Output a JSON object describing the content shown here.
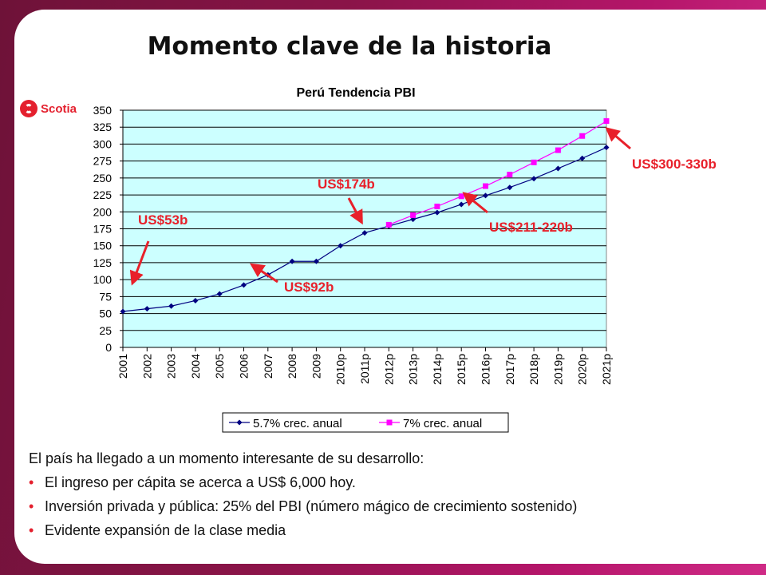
{
  "slide": {
    "title": "Momento clave de la historia",
    "logo_text": "Scotia",
    "intro": "El país ha llegado a un momento interesante de su desarrollo:",
    "bullets": [
      "El ingreso per cápita se acerca a US$ 6,000 hoy.",
      "Inversión privada y pública: 25% del PBI (número mágico de crecimiento sostenido)",
      "Evidente expansión de la clase media"
    ]
  },
  "chart_data": {
    "type": "line",
    "title": "Perú Tendencia PBI",
    "x": [
      "2001",
      "2002",
      "2003",
      "2004",
      "2005",
      "2006",
      "2007",
      "2008",
      "2009",
      "2010p",
      "2011p",
      "2012p",
      "2013p",
      "2014p",
      "2015p",
      "2016p",
      "2017p",
      "2018p",
      "2019p",
      "2020p",
      "2021p"
    ],
    "ylim": [
      0,
      350
    ],
    "yticks": [
      0,
      25,
      50,
      75,
      100,
      125,
      150,
      175,
      200,
      225,
      250,
      275,
      300,
      325,
      350
    ],
    "grid": true,
    "plot_background": "#ccffff",
    "legend_position": "bottom",
    "series": [
      {
        "name": "5.7% crec. anual",
        "color": "#000080",
        "marker": "diamond",
        "values": [
          53,
          57,
          61,
          69,
          79,
          92,
          107,
          127,
          127,
          150,
          169,
          179,
          189,
          199,
          211,
          224,
          236,
          249,
          264,
          279,
          295
        ]
      },
      {
        "name": "7% crec. anual",
        "color": "#ff00ff",
        "marker": "square",
        "values": [
          null,
          null,
          null,
          null,
          null,
          null,
          null,
          null,
          null,
          null,
          null,
          181,
          195,
          208,
          223,
          238,
          255,
          273,
          291,
          312,
          334
        ]
      }
    ],
    "annotations": [
      {
        "text": "US$53b",
        "color": "#e8202a"
      },
      {
        "text": "US$92b",
        "color": "#e8202a"
      },
      {
        "text": "US$174b",
        "color": "#e8202a"
      },
      {
        "text": "US$211-220b",
        "color": "#e8202a"
      },
      {
        "text": "US$300-330b",
        "color": "#e8202a"
      }
    ]
  }
}
